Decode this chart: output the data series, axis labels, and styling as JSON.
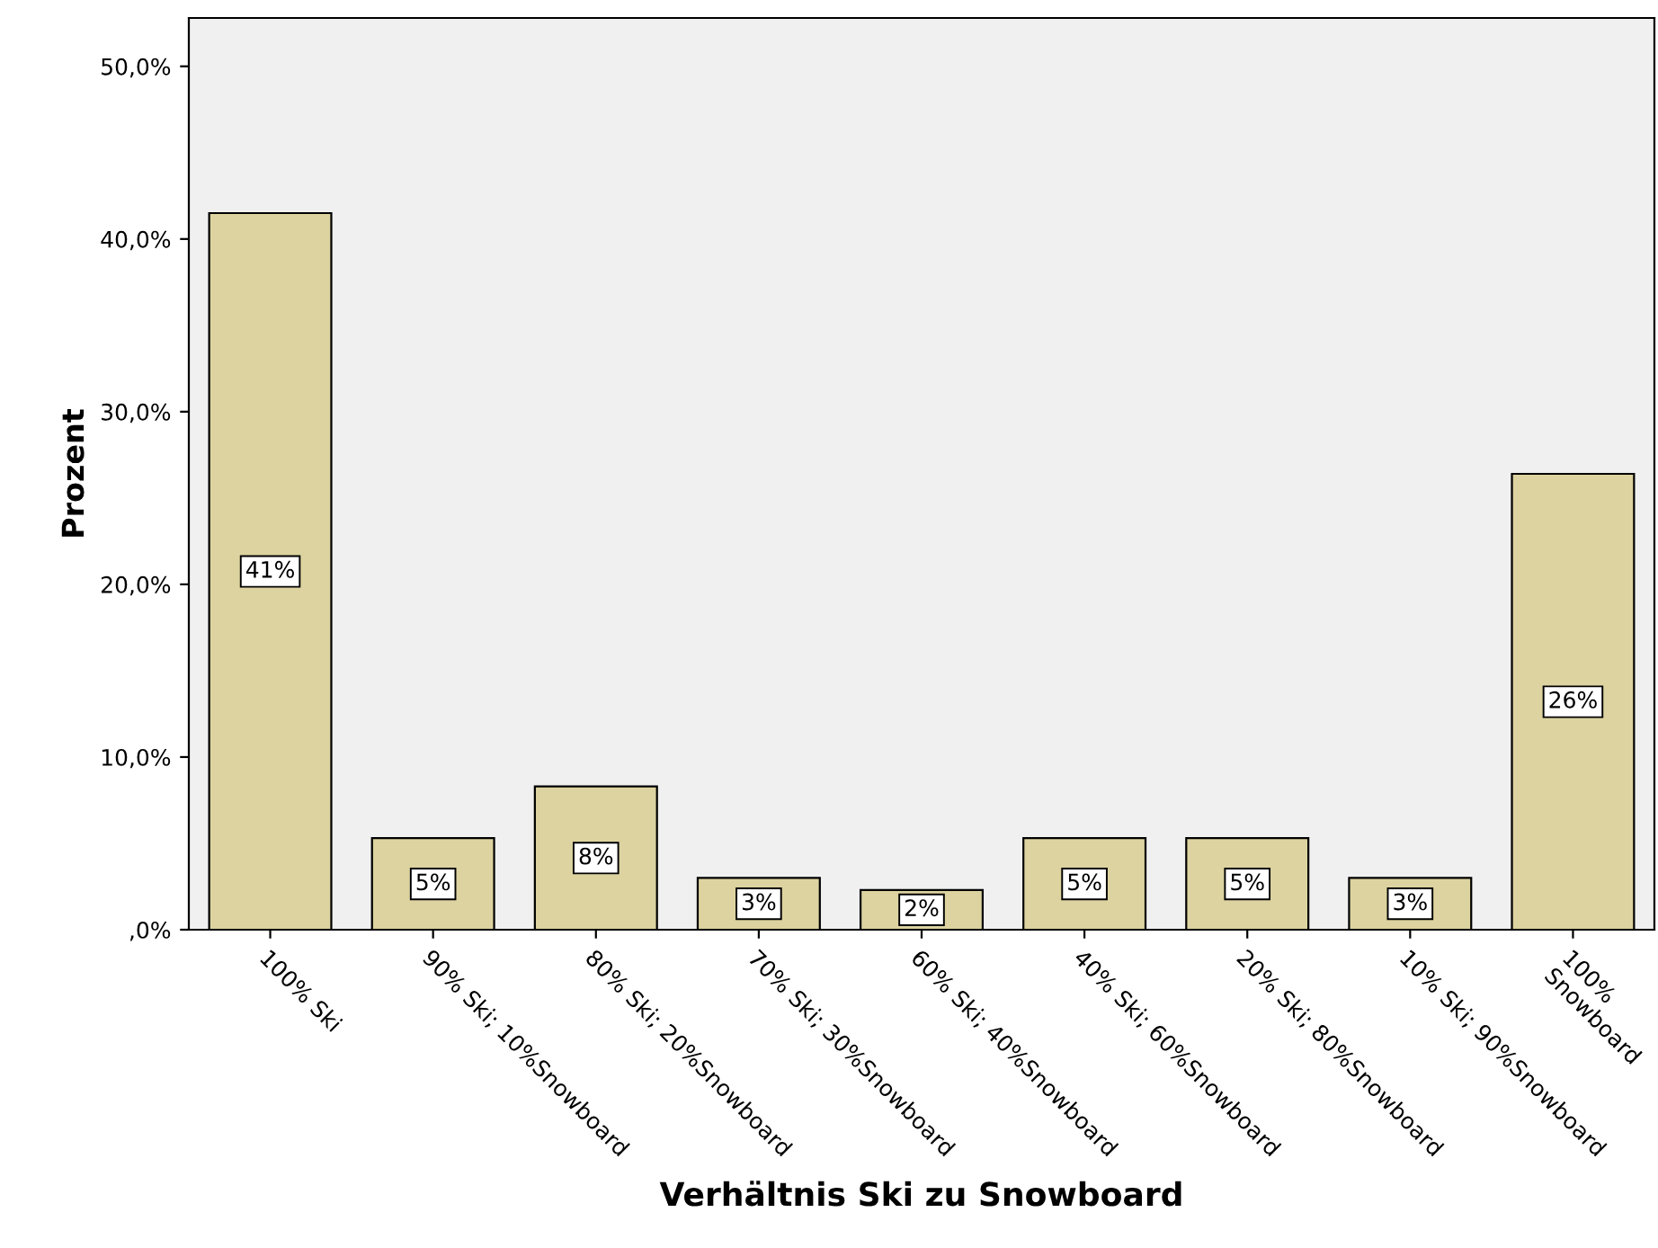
{
  "chart_data": {
    "type": "bar",
    "xlabel": "Verhältnis Ski zu Snowboard",
    "ylabel": "Prozent",
    "categories": [
      "100% Ski",
      "90% Ski; 10%Snowboard",
      "80% Ski; 20%Snowboard",
      "70% Ski; 30%Snowboard",
      "60% Ski; 40%Snowboard",
      "40% Ski; 60%Snowboard",
      "20% Ski; 80%Snowboard",
      "10% Ski; 90%Snowboard",
      "100%\nSnowboard"
    ],
    "values": [
      41.5,
      5.3,
      8.3,
      3.0,
      2.3,
      5.3,
      5.3,
      3.0,
      26.4
    ],
    "value_labels": [
      "41%",
      "5%",
      "8%",
      "3%",
      "2%",
      "5%",
      "5%",
      "3%",
      "26%"
    ],
    "color": "#dcd3a0",
    "ylim": [
      0,
      52.8
    ],
    "yticks": [
      {
        "value": 0,
        "label": ",0%"
      },
      {
        "value": 10,
        "label": "10,0%"
      },
      {
        "value": 20,
        "label": "20,0%"
      },
      {
        "value": 30,
        "label": "30,0%"
      },
      {
        "value": 40,
        "label": "40,0%"
      },
      {
        "value": 50,
        "label": "50,0%"
      }
    ],
    "grid": false,
    "legend": false
  }
}
